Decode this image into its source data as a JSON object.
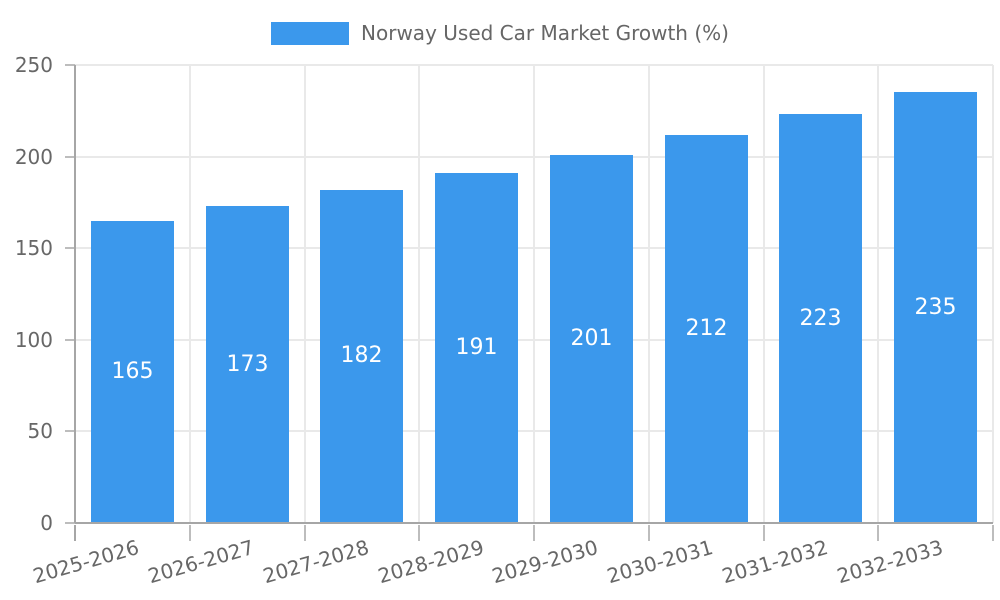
{
  "legend": {
    "label": "Norway Used Car Market Growth (%)"
  },
  "chart_data": {
    "type": "bar",
    "title": "Norway Used Car Market Growth (%)",
    "legend_position": "top",
    "categories": [
      "2025-2026",
      "2026-2027",
      "2027-2028",
      "2028-2029",
      "2029-2030",
      "2030-2031",
      "2031-2032",
      "2032-2033"
    ],
    "values": [
      165,
      173,
      182,
      191,
      201,
      212,
      223,
      235
    ],
    "xlabel": "",
    "ylabel": "",
    "ylim": [
      0,
      250
    ],
    "yticks": [
      0,
      50,
      100,
      150,
      200,
      250
    ],
    "grid": true,
    "colors": {
      "bar": "#3b98ec",
      "value_label": "#ffffff",
      "grid": "#e9e9e9",
      "axis": "#a6a6a6",
      "tick": "#bdbdbd",
      "tick_label": "#676767",
      "legend_text": "#666666",
      "background": "#ffffff"
    }
  }
}
